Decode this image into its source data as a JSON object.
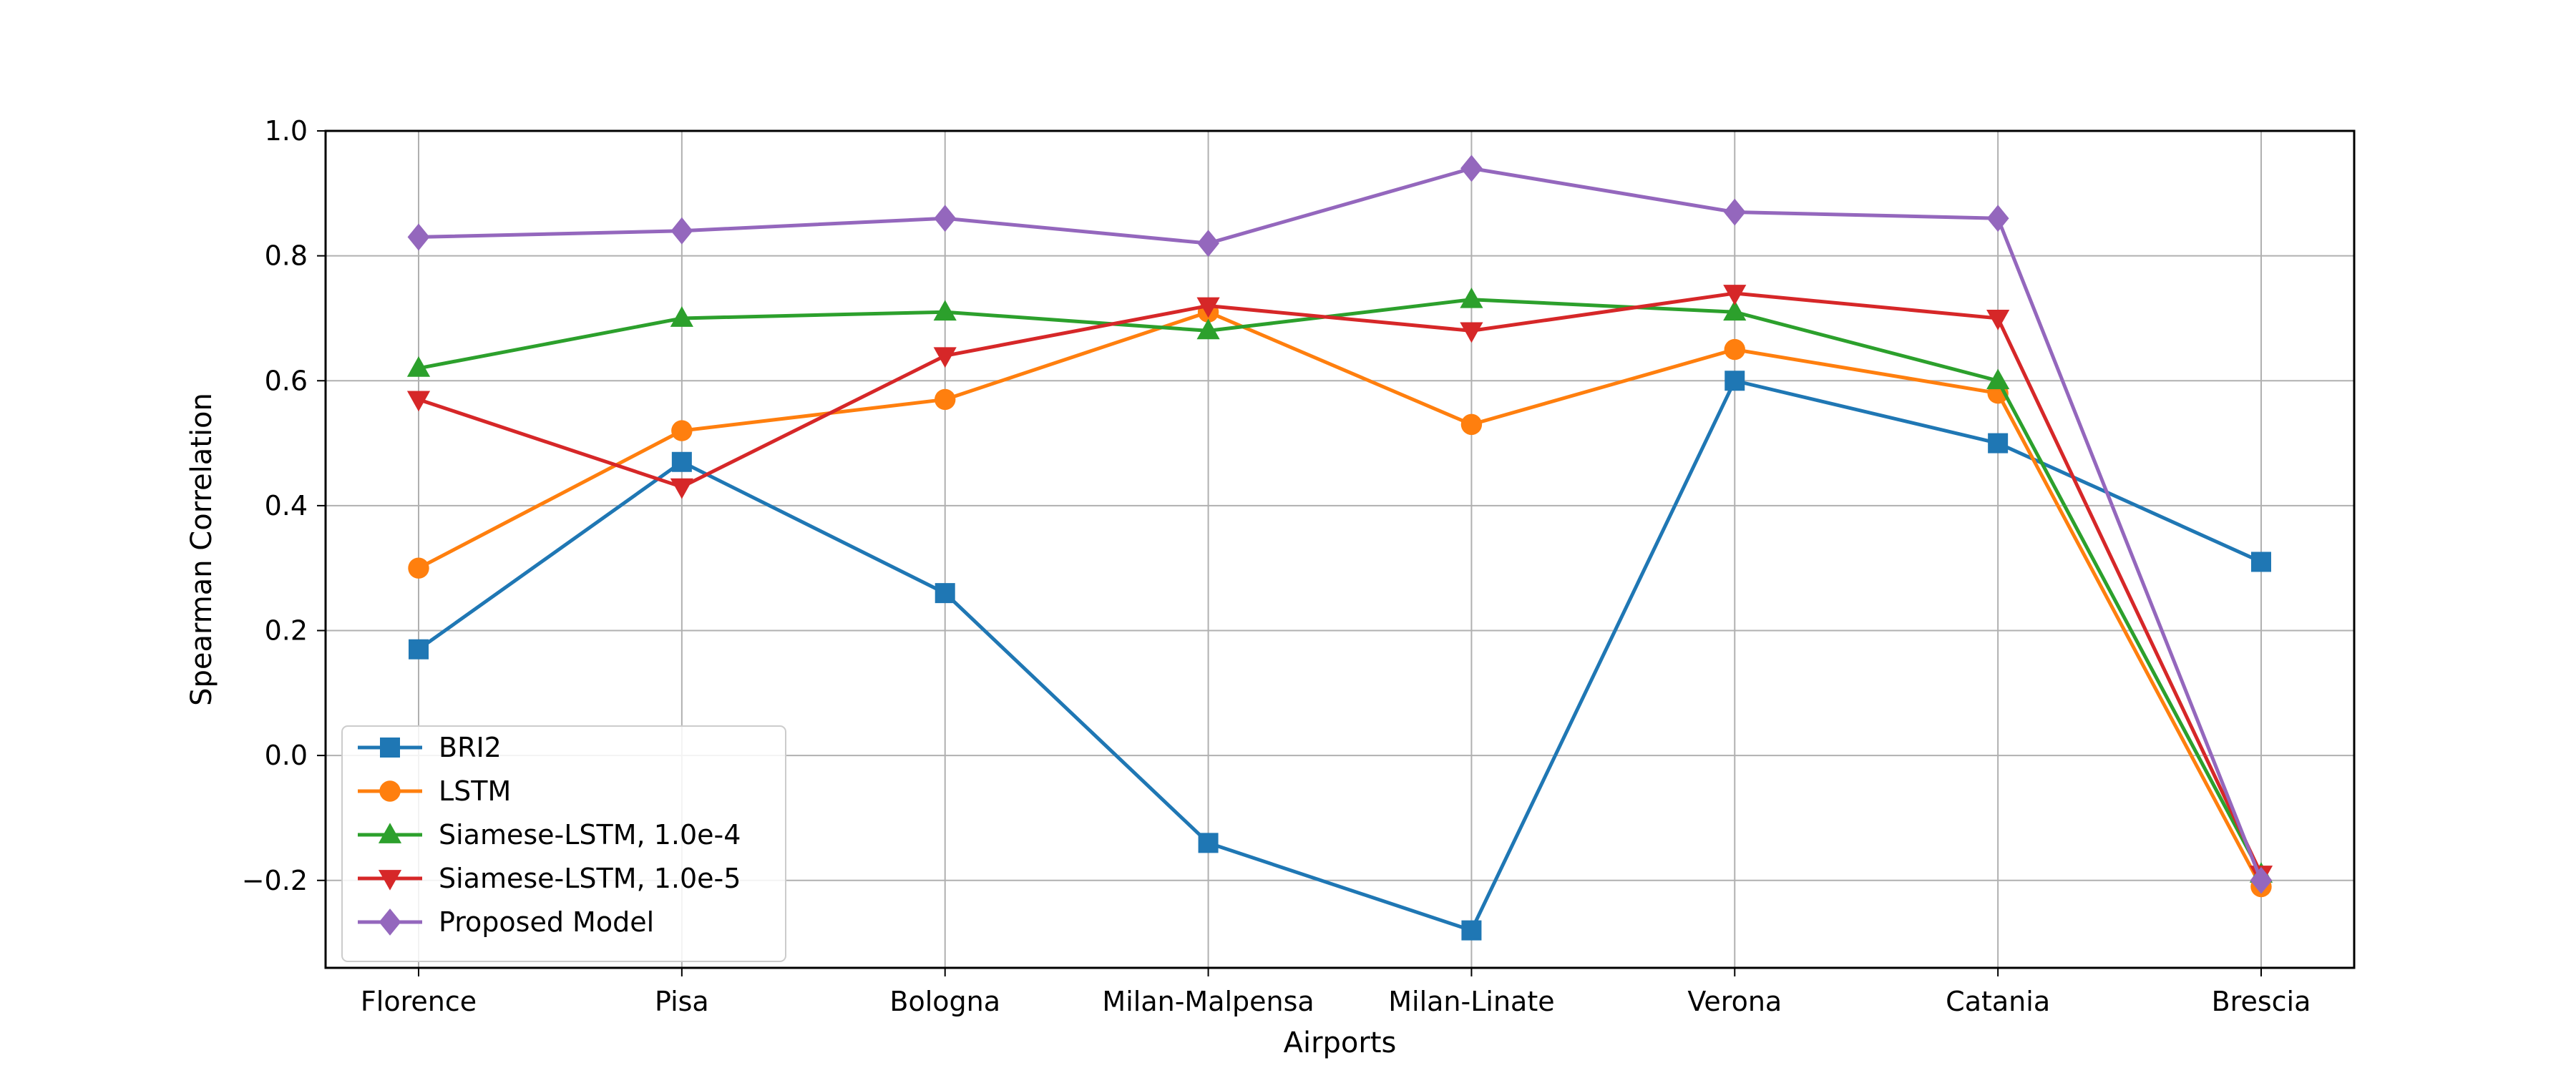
{
  "chart_data": {
    "type": "line",
    "categories": [
      "Florence",
      "Pisa",
      "Bologna",
      "Milan-Malpensa",
      "Milan-Linate",
      "Verona",
      "Catania",
      "Brescia"
    ],
    "xlabel": "Airports",
    "ylabel": "Spearman Correlation",
    "ylim": [
      -0.34,
      1.0
    ],
    "yticks": [
      -0.2,
      0.0,
      0.2,
      0.4,
      0.6,
      0.8,
      1.0
    ],
    "grid": true,
    "legend_position": "lower-left",
    "series": [
      {
        "name": "BRI2",
        "color": "#1f77b4",
        "marker": "square",
        "values": [
          0.17,
          0.47,
          0.26,
          -0.14,
          -0.28,
          0.6,
          0.5,
          0.31
        ]
      },
      {
        "name": "LSTM",
        "color": "#ff7f0e",
        "marker": "circle",
        "values": [
          0.3,
          0.52,
          0.57,
          0.71,
          0.53,
          0.65,
          0.58,
          -0.21
        ]
      },
      {
        "name": "Siamese-LSTM, 1.0e-4",
        "color": "#2ca02c",
        "marker": "triangle-up",
        "values": [
          0.62,
          0.7,
          0.71,
          0.68,
          0.73,
          0.71,
          0.6,
          -0.19
        ]
      },
      {
        "name": "Siamese-LSTM, 1.0e-5",
        "color": "#d62728",
        "marker": "triangle-down",
        "values": [
          0.57,
          0.43,
          0.64,
          0.72,
          0.68,
          0.74,
          0.7,
          -0.19
        ]
      },
      {
        "name": "Proposed Model",
        "color": "#9467bd",
        "marker": "diamond",
        "values": [
          0.83,
          0.84,
          0.86,
          0.82,
          0.94,
          0.87,
          0.86,
          -0.2
        ]
      }
    ]
  }
}
